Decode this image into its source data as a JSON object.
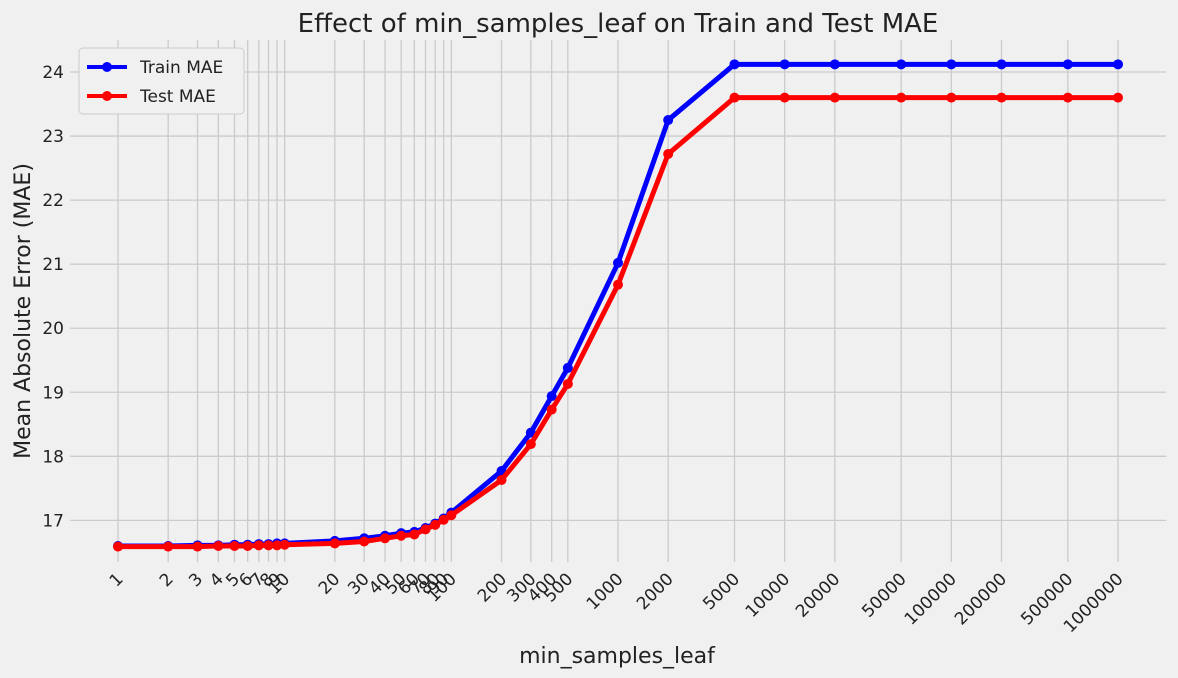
{
  "chart_data": {
    "type": "line",
    "title": "Effect of min_samples_leaf on Train and Test MAE",
    "xlabel": "min_samples_leaf",
    "ylabel": "Mean Absolute Error (MAE)",
    "x_scale": "log",
    "x": [
      1,
      2,
      3,
      4,
      5,
      6,
      7,
      8,
      9,
      10,
      20,
      30,
      40,
      50,
      60,
      70,
      80,
      90,
      100,
      200,
      300,
      400,
      500,
      1000,
      2000,
      5000,
      10000,
      20000,
      50000,
      100000,
      200000,
      500000,
      1000000
    ],
    "x_tick_labels": [
      "1",
      "2",
      "3",
      "4",
      "5",
      "6",
      "7",
      "8",
      "9",
      "10",
      "20",
      "30",
      "40",
      "50",
      "60",
      "70",
      "80",
      "90",
      "100",
      "200",
      "300",
      "400",
      "500",
      "1000",
      "2000",
      "5000",
      "10000",
      "20000",
      "50000",
      "100000",
      "200000",
      "500000",
      "1000000"
    ],
    "ylim": [
      16.35,
      24.5
    ],
    "y_ticks": [
      17,
      18,
      19,
      20,
      21,
      22,
      23,
      24
    ],
    "grid": true,
    "legend_position": "top-left",
    "series": [
      {
        "name": "Train MAE",
        "color": "#0000ff",
        "values": [
          16.6,
          16.6,
          16.61,
          16.61,
          16.62,
          16.62,
          16.63,
          16.63,
          16.64,
          16.64,
          16.68,
          16.72,
          16.76,
          16.8,
          16.82,
          16.88,
          16.95,
          17.03,
          17.12,
          17.77,
          18.37,
          18.94,
          19.38,
          21.02,
          23.25,
          24.12,
          24.12,
          24.12,
          24.12,
          24.12,
          24.12,
          24.12,
          24.12
        ]
      },
      {
        "name": "Test MAE",
        "color": "#ff0000",
        "values": [
          16.59,
          16.59,
          16.59,
          16.6,
          16.6,
          16.6,
          16.61,
          16.61,
          16.61,
          16.62,
          16.64,
          16.67,
          16.72,
          16.76,
          16.78,
          16.86,
          16.93,
          17.01,
          17.08,
          17.63,
          18.19,
          18.73,
          19.13,
          20.68,
          22.72,
          23.6,
          23.6,
          23.6,
          23.6,
          23.6,
          23.6,
          23.6,
          23.6
        ]
      }
    ]
  }
}
